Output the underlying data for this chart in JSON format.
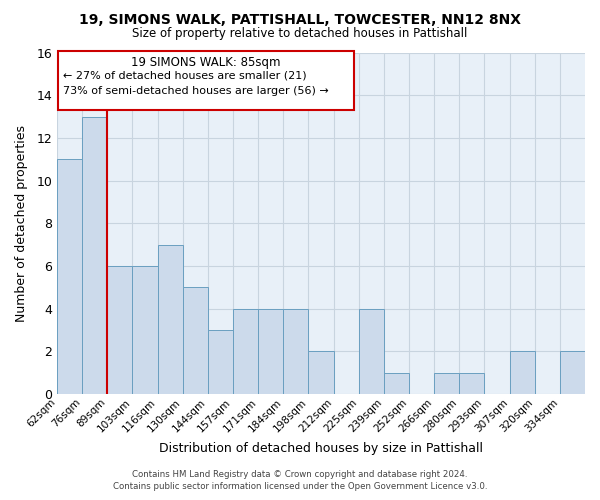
{
  "title": "19, SIMONS WALK, PATTISHALL, TOWCESTER, NN12 8NX",
  "subtitle": "Size of property relative to detached houses in Pattishall",
  "xlabel": "Distribution of detached houses by size in Pattishall",
  "ylabel": "Number of detached properties",
  "footer_line1": "Contains HM Land Registry data © Crown copyright and database right 2024.",
  "footer_line2": "Contains public sector information licensed under the Open Government Licence v3.0.",
  "bin_labels": [
    "62sqm",
    "76sqm",
    "89sqm",
    "103sqm",
    "116sqm",
    "130sqm",
    "144sqm",
    "157sqm",
    "171sqm",
    "184sqm",
    "198sqm",
    "212sqm",
    "225sqm",
    "239sqm",
    "252sqm",
    "266sqm",
    "280sqm",
    "293sqm",
    "307sqm",
    "320sqm",
    "334sqm"
  ],
  "bin_values": [
    11,
    13,
    6,
    6,
    7,
    5,
    3,
    4,
    4,
    4,
    2,
    0,
    4,
    1,
    0,
    1,
    1,
    0,
    2,
    0,
    2
  ],
  "bar_color": "#ccdaeb",
  "bar_edge_color": "#6a9fc0",
  "highlight_line_color": "#cc0000",
  "ylim": [
    0,
    16
  ],
  "yticks": [
    0,
    2,
    4,
    6,
    8,
    10,
    12,
    14,
    16
  ],
  "highlight_bar_index": 2,
  "annotation_line1": "19 SIMONS WALK: 85sqm",
  "annotation_line2": "← 27% of detached houses are smaller (21)",
  "annotation_line3": "73% of semi-detached houses are larger (56) →",
  "annotation_box_facecolor": "#ffffff",
  "annotation_box_edgecolor": "#cc0000",
  "background_color": "#ffffff",
  "grid_color": "#c8d4df",
  "plot_bg_color": "#e8f0f8"
}
